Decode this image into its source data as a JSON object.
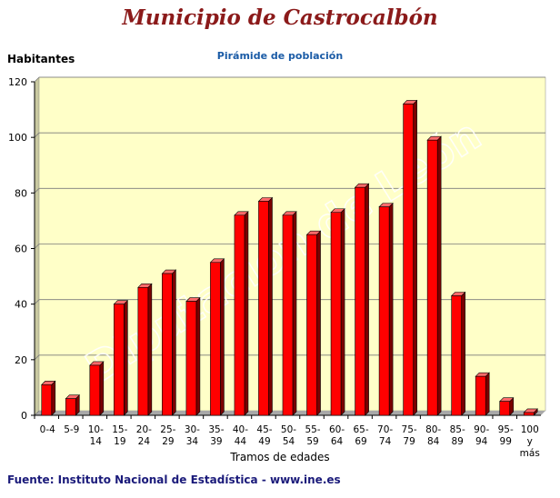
{
  "title": "Municipio de Castrocalbón",
  "footer": "Fuente: Instituto Nacional de Estadística - www.ine.es",
  "watermark": "Diputación de León",
  "colors": {
    "title": "#8b1a1a",
    "subtitle": "#1a5ba6",
    "plot_bg": "#ffffc8",
    "bar": "#ff0000",
    "source": "#1a1a7a"
  },
  "chart_data": {
    "type": "bar",
    "title": "Pirámide de población",
    "ylabel": "Habitantes",
    "xlabel": "Tramos de edades",
    "ylim": [
      0,
      120
    ],
    "yticks": [
      0,
      20,
      40,
      60,
      80,
      100,
      120
    ],
    "grid": true,
    "categories": [
      [
        "0-4"
      ],
      [
        "5-9"
      ],
      [
        "10-",
        "14"
      ],
      [
        "15-",
        "19"
      ],
      [
        "20-",
        "24"
      ],
      [
        "25-",
        "29"
      ],
      [
        "30-",
        "34"
      ],
      [
        "35-",
        "39"
      ],
      [
        "40-",
        "44"
      ],
      [
        "45-",
        "49"
      ],
      [
        "50-",
        "54"
      ],
      [
        "55-",
        "59"
      ],
      [
        "60-",
        "64"
      ],
      [
        "65-",
        "69"
      ],
      [
        "70-",
        "74"
      ],
      [
        "75-",
        "79"
      ],
      [
        "80-",
        "84"
      ],
      [
        "85-",
        "89"
      ],
      [
        "90-",
        "94"
      ],
      [
        "95-",
        "99"
      ],
      [
        "100",
        "y",
        "más"
      ]
    ],
    "values": [
      11,
      6,
      18,
      40,
      46,
      51,
      41,
      55,
      72,
      77,
      72,
      65,
      73,
      82,
      75,
      112,
      99,
      43,
      14,
      5,
      1
    ]
  }
}
